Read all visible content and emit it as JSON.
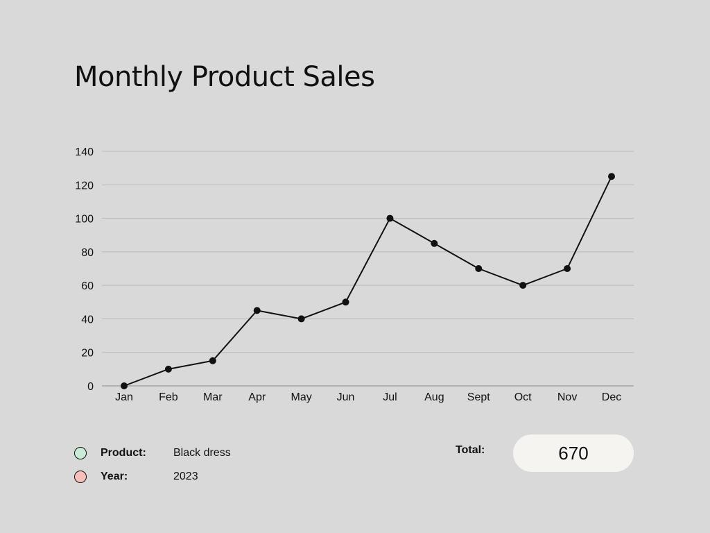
{
  "colors": {
    "background": "#d9d9d9",
    "line": "#111111",
    "grid": "#b9b9b9",
    "product_swatch": "#c8ecd6",
    "year_swatch": "#f7bfbb",
    "total_box": "#f6f4f0"
  },
  "legend": {
    "product_label": "Product:",
    "product_value": "Black dress",
    "year_label": "Year:",
    "year_value": "2023"
  },
  "total": {
    "label": "Total:",
    "value": "670"
  },
  "chart_data": {
    "type": "line",
    "title": "Monthly Product Sales",
    "xlabel": "",
    "ylabel": "",
    "categories": [
      "Jan",
      "Feb",
      "Mar",
      "Apr",
      "May",
      "Jun",
      "Jul",
      "Aug",
      "Sept",
      "Oct",
      "Nov",
      "Dec"
    ],
    "series": [
      {
        "values": [
          0,
          10,
          15,
          45,
          40,
          50,
          100,
          85,
          70,
          60,
          70,
          125
        ]
      }
    ],
    "ylim": [
      0,
      140
    ],
    "yticks": [
      0,
      20,
      40,
      60,
      80,
      100,
      120,
      140
    ],
    "grid": true,
    "markers": true
  }
}
